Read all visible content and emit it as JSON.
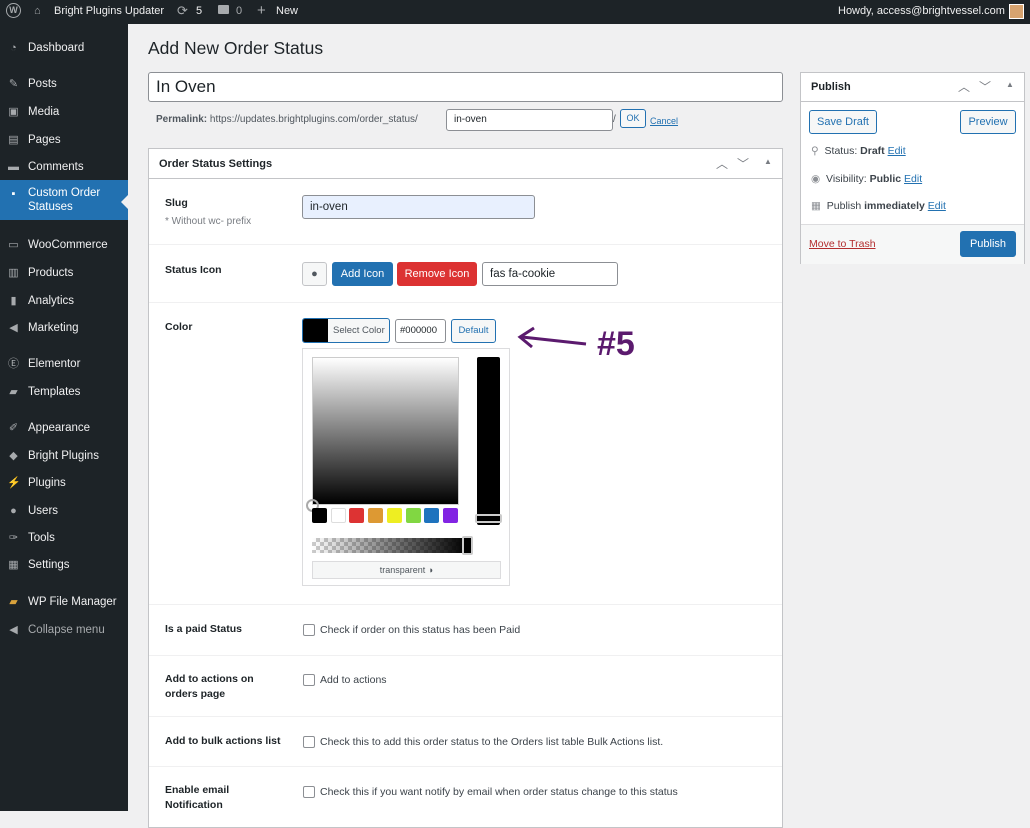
{
  "adminbar": {
    "site": "Bright Plugins Updater",
    "updates": "5",
    "comments": "0",
    "new": "New",
    "howdy": "Howdy, access@brightvessel.com"
  },
  "sidebar": {
    "items": [
      {
        "label": "Dashboard",
        "icon": "dashboard-icon"
      },
      {
        "label": "Posts",
        "icon": "pin-icon"
      },
      {
        "label": "Media",
        "icon": "media-icon"
      },
      {
        "label": "Pages",
        "icon": "pages-icon"
      },
      {
        "label": "Comments",
        "icon": "comment-icon"
      },
      {
        "label": "Custom Order Statuses",
        "icon": "status-icon",
        "active": true
      },
      {
        "label": "WooCommerce",
        "icon": "woo-icon"
      },
      {
        "label": "Products",
        "icon": "products-icon"
      },
      {
        "label": "Analytics",
        "icon": "analytics-icon"
      },
      {
        "label": "Marketing",
        "icon": "megaphone-icon"
      },
      {
        "label": "Elementor",
        "icon": "elementor-icon"
      },
      {
        "label": "Templates",
        "icon": "folder-icon"
      },
      {
        "label": "Appearance",
        "icon": "brush-icon"
      },
      {
        "label": "Bright Plugins",
        "icon": "bright-plugins-icon"
      },
      {
        "label": "Plugins",
        "icon": "plug-icon"
      },
      {
        "label": "Users",
        "icon": "user-icon"
      },
      {
        "label": "Tools",
        "icon": "wrench-icon"
      },
      {
        "label": "Settings",
        "icon": "settings-icon"
      },
      {
        "label": "WP File Manager",
        "icon": "file-manager-icon"
      },
      {
        "label": "Collapse menu",
        "icon": "collapse-icon"
      }
    ]
  },
  "page": {
    "title": "Add New Order Status",
    "post_title": "In Oven",
    "permalink": {
      "label": "Permalink:",
      "base": "https://updates.brightplugins.com/order_status/",
      "slug": "in-oven",
      "slash": "/",
      "ok": "OK",
      "cancel": "Cancel"
    }
  },
  "settings": {
    "title": "Order Status Settings",
    "slug": {
      "label": "Slug",
      "hint": "* Without wc- prefix",
      "value": "in-oven"
    },
    "icon": {
      "label": "Status Icon",
      "add": "Add Icon",
      "remove": "Remove Icon",
      "value": "fas fa-cookie"
    },
    "color": {
      "label": "Color",
      "select": "Select Color",
      "value": "#000000",
      "default": "Default",
      "transparent": "transparent",
      "swatches": [
        "#000000",
        "#ffffff",
        "#dd3333",
        "#dd9933",
        "#eeee22",
        "#81d742",
        "#1e73be",
        "#8224e3"
      ]
    },
    "paid": {
      "label": "Is a paid Status",
      "text": "Check if order on this status has been Paid"
    },
    "actions": {
      "label": "Add to actions on orders page",
      "text": "Add to actions"
    },
    "bulk": {
      "label": "Add to bulk actions list",
      "text": "Check this to add this order status to the Orders list table Bulk Actions list."
    },
    "email": {
      "label": "Enable email Notification",
      "text": "Check this if you want notify by email when order status change to this status"
    }
  },
  "annotation": {
    "text": "#5",
    "color": "#5b1a6e"
  },
  "publish": {
    "title": "Publish",
    "save_draft": "Save Draft",
    "preview": "Preview",
    "status_label": "Status:",
    "status": "Draft",
    "visibility_label": "Visibility:",
    "visibility": "Public",
    "publish_label": "Publish",
    "publish_when": "immediately",
    "edit": "Edit",
    "trash": "Move to Trash",
    "publish_btn": "Publish"
  }
}
